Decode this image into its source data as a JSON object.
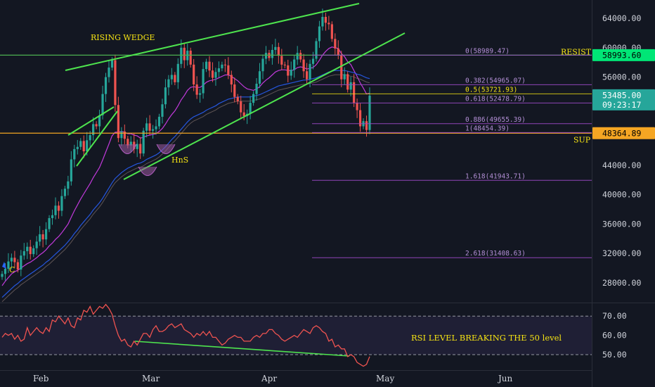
{
  "chart_data": [
    {
      "type": "candlestick",
      "x_axis": {
        "ticks": [
          "Feb",
          "Mar",
          "Apr",
          "May",
          "Jun"
        ]
      },
      "y_axis": {
        "ticks": [
          "64000.00",
          "60000.00",
          "56000.00",
          "52000.00",
          "48000.00",
          "44000.00",
          "40000.00",
          "36000.00",
          "32000.00",
          "28000.00"
        ],
        "ylim": [
          25300,
          66500
        ]
      },
      "price_labels": [
        {
          "text": "58993.60",
          "value": 58993.6,
          "color": "#00e676",
          "text_color": "#000000"
        },
        {
          "text": "53485.00",
          "value": 53485,
          "color": "#26a69a",
          "text_color": "#ffffff",
          "sub": "09:23:17"
        },
        {
          "text": "48364.89",
          "value": 48364.89,
          "color": "#f5a623",
          "text_color": "#000000"
        }
      ],
      "horizontal_levels": [
        {
          "value": 58993.6,
          "color": "#4caf50",
          "label": "RESIST"
        },
        {
          "value": 48364.89,
          "color": "#f5a623",
          "label": "SUP"
        }
      ],
      "fib_levels": [
        {
          "ratio": "0",
          "value": 58989.47,
          "label": "0(58989.47)"
        },
        {
          "ratio": "0.382",
          "value": 54965.07,
          "label": "0.382(54965.07)"
        },
        {
          "ratio": "0.5",
          "value": 53721.93,
          "label": "0.5(53721.93)"
        },
        {
          "ratio": "0.618",
          "value": 52478.79,
          "label": "0.618(52478.79)"
        },
        {
          "ratio": "0.886",
          "value": 49655.39,
          "label": "0.886(49655.39)"
        },
        {
          "ratio": "1",
          "value": 48454.39,
          "label": "1(48454.39)"
        },
        {
          "ratio": "1.618",
          "value": 41943.71,
          "label": "1.618(41943.71)"
        },
        {
          "ratio": "2.618",
          "value": 31408.63,
          "label": "2.618(31408.63)"
        }
      ],
      "annotations": [
        "RISING WEDGE",
        "HnS",
        "C"
      ],
      "candles_close": [
        29200,
        29900,
        30900,
        31400,
        30800,
        29800,
        31700,
        32300,
        32900,
        31900,
        32700,
        33600,
        34600,
        33900,
        35300,
        36800,
        37200,
        38500,
        37800,
        39800,
        40800,
        41800,
        44800,
        46200,
        46500,
        47300,
        45900,
        47400,
        48100,
        49600,
        49300,
        50800,
        53700,
        56000,
        57300,
        58300,
        52200,
        47700,
        48600,
        47600,
        46700,
        47200,
        46200,
        46900,
        45600,
        48700,
        49700,
        48700,
        48900,
        49300,
        50600,
        52300,
        54600,
        55700,
        56300,
        55300,
        57800,
        60000,
        58300,
        59600,
        57700,
        55000,
        53600,
        53800,
        57100,
        58100,
        56900,
        55900,
        56700,
        57200,
        57700,
        57600,
        56300,
        55000,
        53300,
        52700,
        51200,
        50700,
        51000,
        52500,
        53700,
        55100,
        56800,
        58500,
        59300,
        58600,
        59700,
        60100,
        58900,
        57700,
        57600,
        56200,
        57000,
        58400,
        59300,
        58400,
        56800,
        55700,
        57800,
        58500,
        60900,
        62900,
        64200,
        63400,
        63200,
        61200,
        59900,
        59000,
        55700,
        56400,
        54300,
        55300,
        52500,
        51500,
        49300,
        50000,
        48800,
        53485
      ],
      "ma_lines": [
        {
          "color": "#e040fb",
          "values": [
            27600,
            28200,
            28700,
            29200,
            29500,
            29700,
            30000,
            30300,
            30600,
            30800,
            31100,
            31400,
            31800,
            32100,
            32500,
            33000,
            33400,
            33900,
            34300,
            34800,
            35400,
            36000,
            36900,
            37800,
            38600,
            39400,
            40100,
            40800,
            41500,
            42300,
            43000,
            43700,
            44700,
            45800,
            46900,
            48000,
            48500,
            48500,
            48600,
            48500,
            48300,
            48300,
            48100,
            48000,
            47700,
            47800,
            48000,
            48100,
            48200,
            48300,
            48600,
            49000,
            49600,
            50300,
            50900,
            51400,
            52100,
            52900,
            53500,
            54200,
            54600,
            54700,
            54600,
            54600,
            54900,
            55300,
            55500,
            55600,
            55700,
            55900,
            56100,
            56300,
            56300,
            56100,
            55800,
            55500,
            55100,
            54700,
            54400,
            54300,
            54200,
            54400,
            54700,
            55200,
            55600,
            55900,
            56300,
            56700,
            56900,
            57000,
            57000,
            56900,
            56900,
            57000,
            57300,
            57400,
            57300,
            57100,
            57200,
            57300,
            57700,
            58300,
            59000,
            59500,
            59900,
            60100,
            60000,
            59900,
            59200,
            58800,
            58100,
            57700,
            56900,
            56100,
            55200,
            54500,
            53700,
            53800
          ]
        },
        {
          "color": "#2962ff",
          "values": [
            26000,
            26400,
            26800,
            27200,
            27600,
            27900,
            28300,
            28600,
            28900,
            29200,
            29500,
            29800,
            30100,
            30400,
            30800,
            31100,
            31500,
            31900,
            32300,
            32700,
            33100,
            33600,
            34100,
            34700,
            35200,
            35800,
            36300,
            36800,
            37300,
            37900,
            38400,
            38900,
            39500,
            40200,
            40900,
            41600,
            42200,
            42600,
            43000,
            43300,
            43600,
            43800,
            44000,
            44200,
            44300,
            44500,
            44800,
            45000,
            45200,
            45400,
            45700,
            46100,
            46500,
            47000,
            47500,
            47900,
            48400,
            48900,
            49400,
            49900,
            50300,
            50600,
            50800,
            51000,
            51200,
            51500,
            51700,
            51900,
            52100,
            52400,
            52600,
            52800,
            53000,
            53100,
            53200,
            53300,
            53300,
            53300,
            53300,
            53300,
            53400,
            53500,
            53600,
            53800,
            54000,
            54200,
            54400,
            54600,
            54800,
            54900,
            55000,
            55100,
            55200,
            55300,
            55400,
            55500,
            55600,
            55600,
            55700,
            55800,
            55900,
            56100,
            56300,
            56500,
            56700,
            56800,
            56900,
            56900,
            56900,
            56900,
            56800,
            56700,
            56600,
            56400,
            56300,
            56100,
            55900,
            55800
          ]
        }
      ]
    },
    {
      "type": "line",
      "name": "RSI",
      "y_axis": {
        "ticks": [
          "70.00",
          "60.00",
          "50.00"
        ],
        "ylim": [
          42,
          77
        ]
      },
      "levels": [
        70,
        50
      ],
      "rsi_values": [
        59,
        61,
        60,
        61,
        58,
        60,
        57,
        58,
        64,
        60,
        62,
        64,
        62,
        61,
        64,
        62,
        68,
        67,
        70,
        68,
        66,
        69,
        65,
        64,
        69,
        68,
        73,
        72,
        75,
        71,
        73,
        75,
        74,
        76,
        74,
        71,
        65,
        60,
        57,
        58,
        55,
        54,
        57,
        55,
        58,
        61,
        61,
        59,
        63,
        65,
        62,
        62,
        63,
        65,
        66,
        64,
        65,
        66,
        63,
        62,
        61,
        59,
        61,
        60,
        62,
        60,
        62,
        59,
        59,
        57,
        55,
        56,
        58,
        59,
        60,
        59,
        59,
        57,
        57,
        57,
        59,
        60,
        59,
        61,
        61,
        63,
        63,
        61,
        60,
        58,
        57,
        58,
        59,
        60,
        59,
        61,
        63,
        62,
        61,
        64,
        65,
        64,
        62,
        61,
        57,
        58,
        54,
        55,
        53,
        53,
        49,
        50,
        49,
        46,
        45,
        44,
        45,
        49
      ],
      "annotation": "RSI LEVEL BREAKING THE 50 level"
    }
  ]
}
